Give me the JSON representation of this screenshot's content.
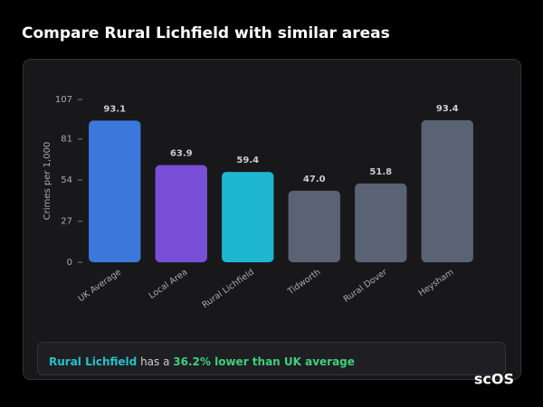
{
  "chart_data": {
    "type": "bar",
    "title": "Compare Rural Lichfield with similar areas",
    "y_label": "Crimes per 1,000",
    "categories": [
      "UK Average",
      "Local Area",
      "Rural Lichfield",
      "Tidworth",
      "Rural Dover",
      "Heysham"
    ],
    "values": [
      93.1,
      63.9,
      59.4,
      47.0,
      51.8,
      93.4
    ],
    "value_labels": [
      "93.1",
      "63.9",
      "59.4",
      "47.0",
      "51.8",
      "93.4"
    ],
    "colors": [
      "#3a78dc",
      "#7a4fd8",
      "#1fb6cf",
      "#5a6374",
      "#5a6374",
      "#5a6374"
    ],
    "ylim": [
      0,
      107
    ],
    "yticks": [
      0,
      27,
      54,
      81,
      107
    ],
    "grid": false,
    "summary": {
      "area": "Rural Lichfield",
      "text": "has a",
      "highlight": "36.2% lower than UK average"
    },
    "logo": "scOS"
  }
}
